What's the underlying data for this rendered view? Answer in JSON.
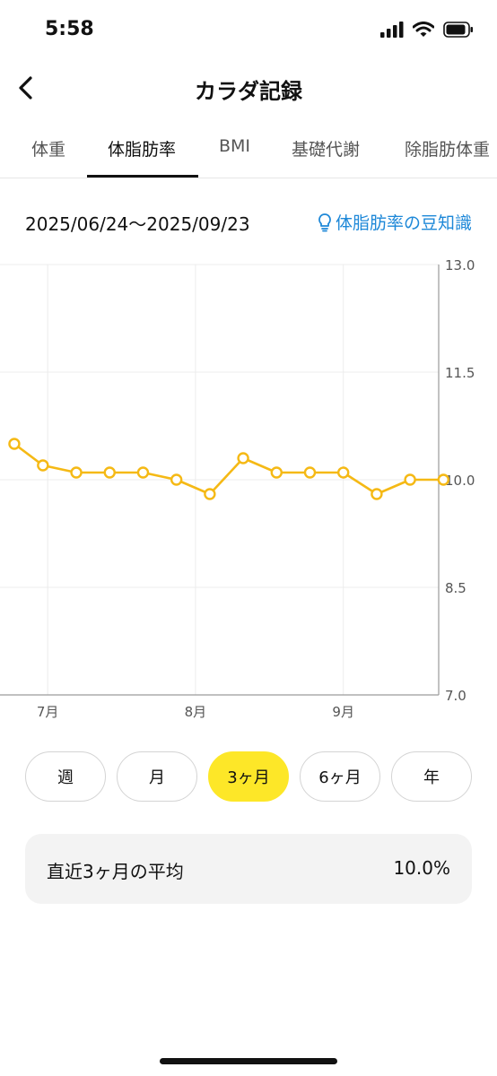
{
  "status_bar": {
    "time": "5:58",
    "icons": [
      "signal-icon",
      "wifi-icon",
      "battery-icon"
    ]
  },
  "nav": {
    "title": "カラダ記録",
    "back_icon": "chevron-left-icon"
  },
  "tabs": [
    {
      "label": "体重",
      "active": false
    },
    {
      "label": "体脂肪率",
      "active": true
    },
    {
      "label": "BMI",
      "active": false
    },
    {
      "label": "基礎代謝",
      "active": false
    },
    {
      "label": "除脂肪体重",
      "active": false
    }
  ],
  "date_range": "2025/06/24〜2025/09/23",
  "tip_link": {
    "label": "体脂肪率の豆知識",
    "icon": "lightbulb-icon"
  },
  "chart_data": {
    "type": "line",
    "title": "",
    "xlabel": "",
    "ylabel": "",
    "ylim": [
      7.0,
      13.0
    ],
    "y_ticks": [
      "13.0",
      "11.5",
      "10.0",
      "8.5",
      "7.0"
    ],
    "x_ticks": [
      "7月",
      "8月",
      "9月"
    ],
    "x_tick_dates": [
      "2025-07-01",
      "2025-08-01",
      "2025-09-01"
    ],
    "grid": true,
    "color": "#f5b915",
    "series": [
      {
        "x": [
          "2025-06-24",
          "2025-06-30",
          "2025-07-07",
          "2025-07-14",
          "2025-07-21",
          "2025-07-28",
          "2025-08-04",
          "2025-08-11",
          "2025-08-18",
          "2025-08-25",
          "2025-09-01",
          "2025-09-08",
          "2025-09-15",
          "2025-09-22"
        ],
        "values": [
          10.5,
          10.2,
          10.1,
          10.1,
          10.1,
          10.0,
          9.8,
          10.3,
          10.1,
          10.1,
          10.1,
          9.8,
          10.0,
          10.0
        ]
      }
    ]
  },
  "ranges": [
    {
      "label": "週",
      "active": false
    },
    {
      "label": "月",
      "active": false
    },
    {
      "label": "3ヶ月",
      "active": true
    },
    {
      "label": "6ヶ月",
      "active": false
    },
    {
      "label": "年",
      "active": false
    }
  ],
  "average": {
    "label": "直近3ヶ月の平均",
    "value": "10.0%"
  }
}
